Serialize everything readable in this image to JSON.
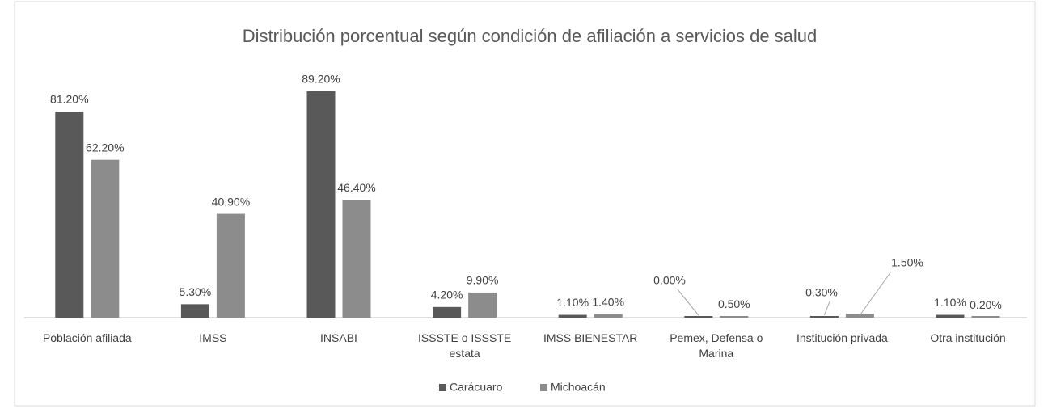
{
  "chart_data": {
    "type": "bar",
    "title": "Distribución porcentual según condición de afiliación a servicios de salud",
    "categories": [
      "Población afiliada",
      "IMSS",
      "INSABI",
      "ISSSTE o ISSSTE estata",
      "IMSS BIENESTAR",
      "Pemex, Defensa o Marina",
      "Institución privada",
      "Otra institución"
    ],
    "series": [
      {
        "name": "Carácuaro",
        "color": "#595959",
        "values": [
          81.2,
          5.3,
          89.2,
          4.2,
          1.1,
          0.0,
          0.3,
          1.1
        ],
        "value_labels": [
          "81.20%",
          "5.30%",
          "89.20%",
          "4.20%",
          "1.10%",
          "0.00%",
          "0.30%",
          "1.10%"
        ]
      },
      {
        "name": "Michoacán",
        "color": "#8c8c8c",
        "values": [
          62.2,
          40.9,
          46.4,
          9.9,
          1.4,
          0.5,
          1.5,
          0.2
        ],
        "value_labels": [
          "62.20%",
          "40.90%",
          "46.40%",
          "9.90%",
          "1.40%",
          "0.50%",
          "1.50%",
          "0.20%"
        ]
      }
    ],
    "legend": "bottom"
  }
}
